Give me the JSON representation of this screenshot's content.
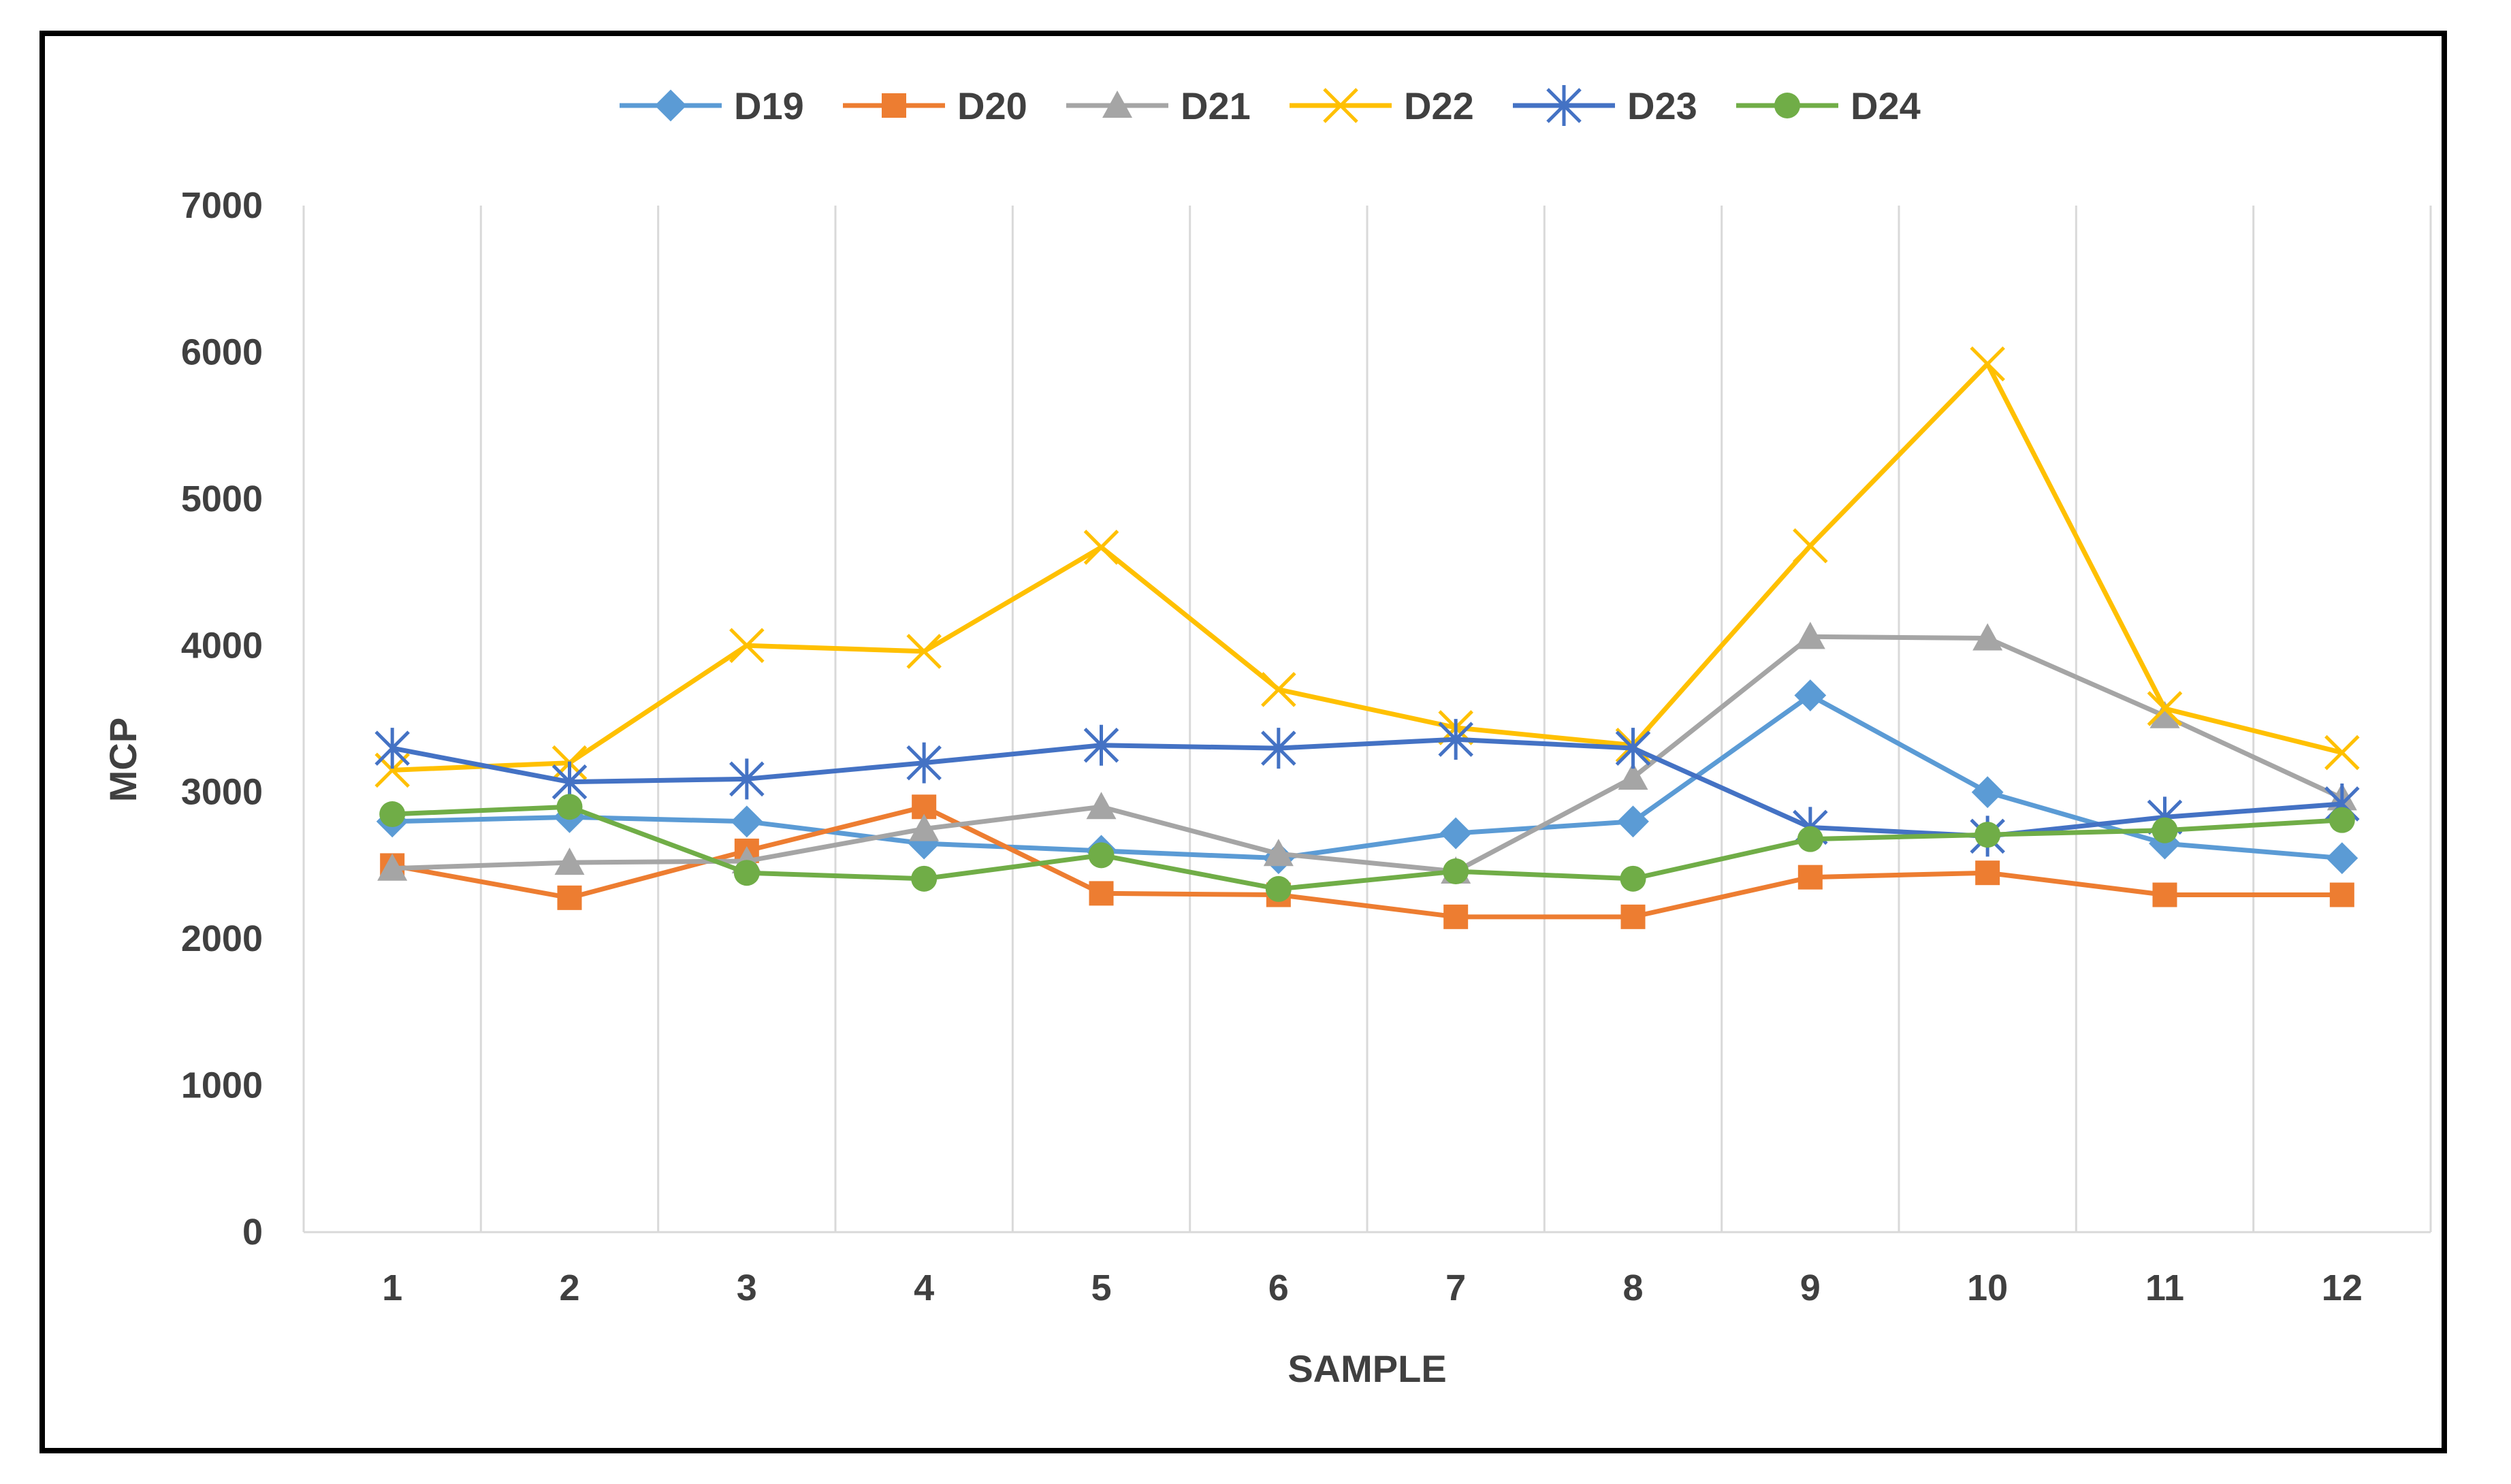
{
  "chart_data": {
    "type": "line",
    "title": "",
    "xlabel": "SAMPLE",
    "ylabel": "MCP",
    "categories": [
      "1",
      "2",
      "3",
      "4",
      "5",
      "6",
      "7",
      "8",
      "9",
      "10",
      "11",
      "12"
    ],
    "ylim": [
      0,
      7000
    ],
    "yticks": [
      0,
      1000,
      2000,
      3000,
      4000,
      5000,
      6000,
      7000
    ],
    "grid": "vertical",
    "legend_position": "top",
    "series": [
      {
        "name": "D19",
        "color": "#5B9BD5",
        "marker": "diamond",
        "values": [
          2800,
          2830,
          2800,
          2650,
          2600,
          2550,
          2720,
          2800,
          3660,
          3000,
          2650,
          2550
        ]
      },
      {
        "name": "D20",
        "color": "#ED7D31",
        "marker": "square",
        "values": [
          2500,
          2280,
          2600,
          2900,
          2310,
          2300,
          2150,
          2150,
          2420,
          2450,
          2300,
          2300
        ]
      },
      {
        "name": "D21",
        "color": "#A5A5A5",
        "marker": "triangle",
        "values": [
          2480,
          2520,
          2530,
          2750,
          2900,
          2580,
          2460,
          3100,
          4060,
          4050,
          3520,
          2960
        ]
      },
      {
        "name": "D22",
        "color": "#FFC000",
        "marker": "x",
        "values": [
          3150,
          3200,
          4000,
          3960,
          4670,
          3700,
          3440,
          3320,
          4680,
          5920,
          3570,
          3270
        ]
      },
      {
        "name": "D23",
        "color": "#4472C4",
        "marker": "asterisk",
        "values": [
          3300,
          3070,
          3090,
          3200,
          3320,
          3300,
          3360,
          3300,
          2760,
          2700,
          2830,
          2920
        ]
      },
      {
        "name": "D24",
        "color": "#70AD47",
        "marker": "circle",
        "values": [
          2850,
          2900,
          2450,
          2410,
          2570,
          2340,
          2460,
          2410,
          2680,
          2710,
          2740,
          2810
        ]
      }
    ]
  }
}
